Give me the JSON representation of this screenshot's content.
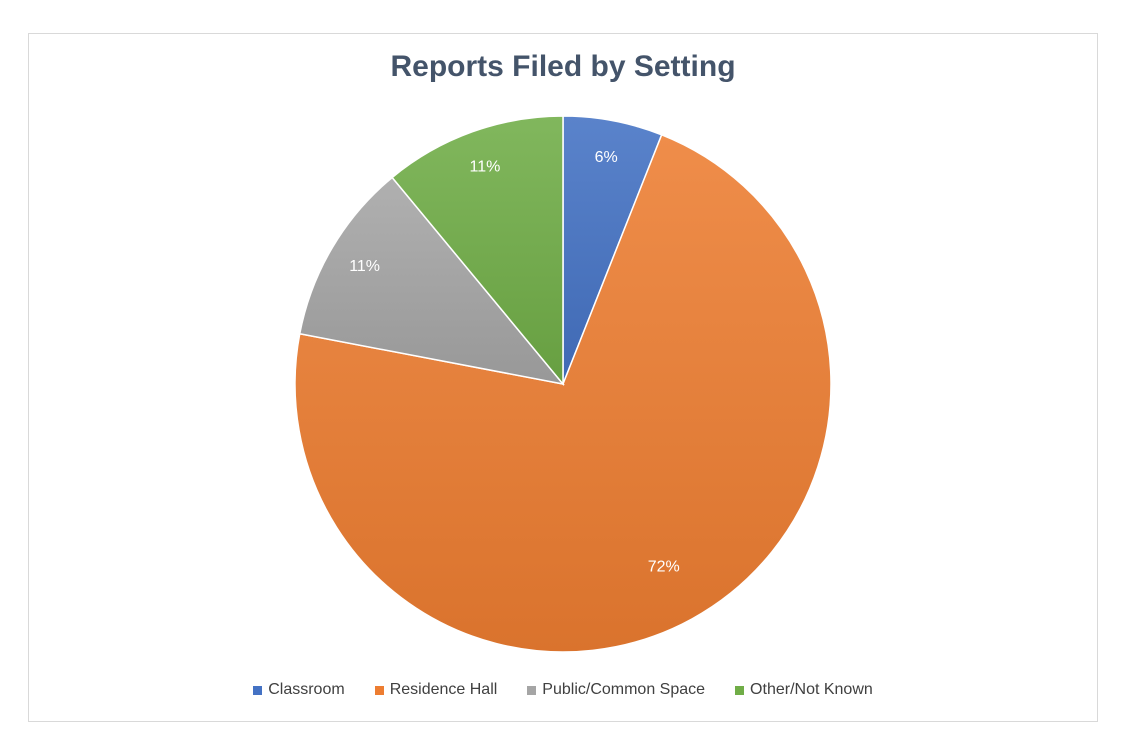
{
  "chart_data": {
    "type": "pie",
    "title": "Reports Filed by Setting",
    "categories": [
      "Classroom",
      "Residence Hall",
      "Public/Common Space",
      "Other/Not Known"
    ],
    "values": [
      6,
      72,
      11,
      11
    ],
    "data_labels": [
      "6%",
      "72%",
      "11%",
      "11%"
    ],
    "colors": [
      "#4472c4",
      "#ed7d31",
      "#a5a5a5",
      "#70ad47"
    ],
    "legend_position": "bottom"
  }
}
